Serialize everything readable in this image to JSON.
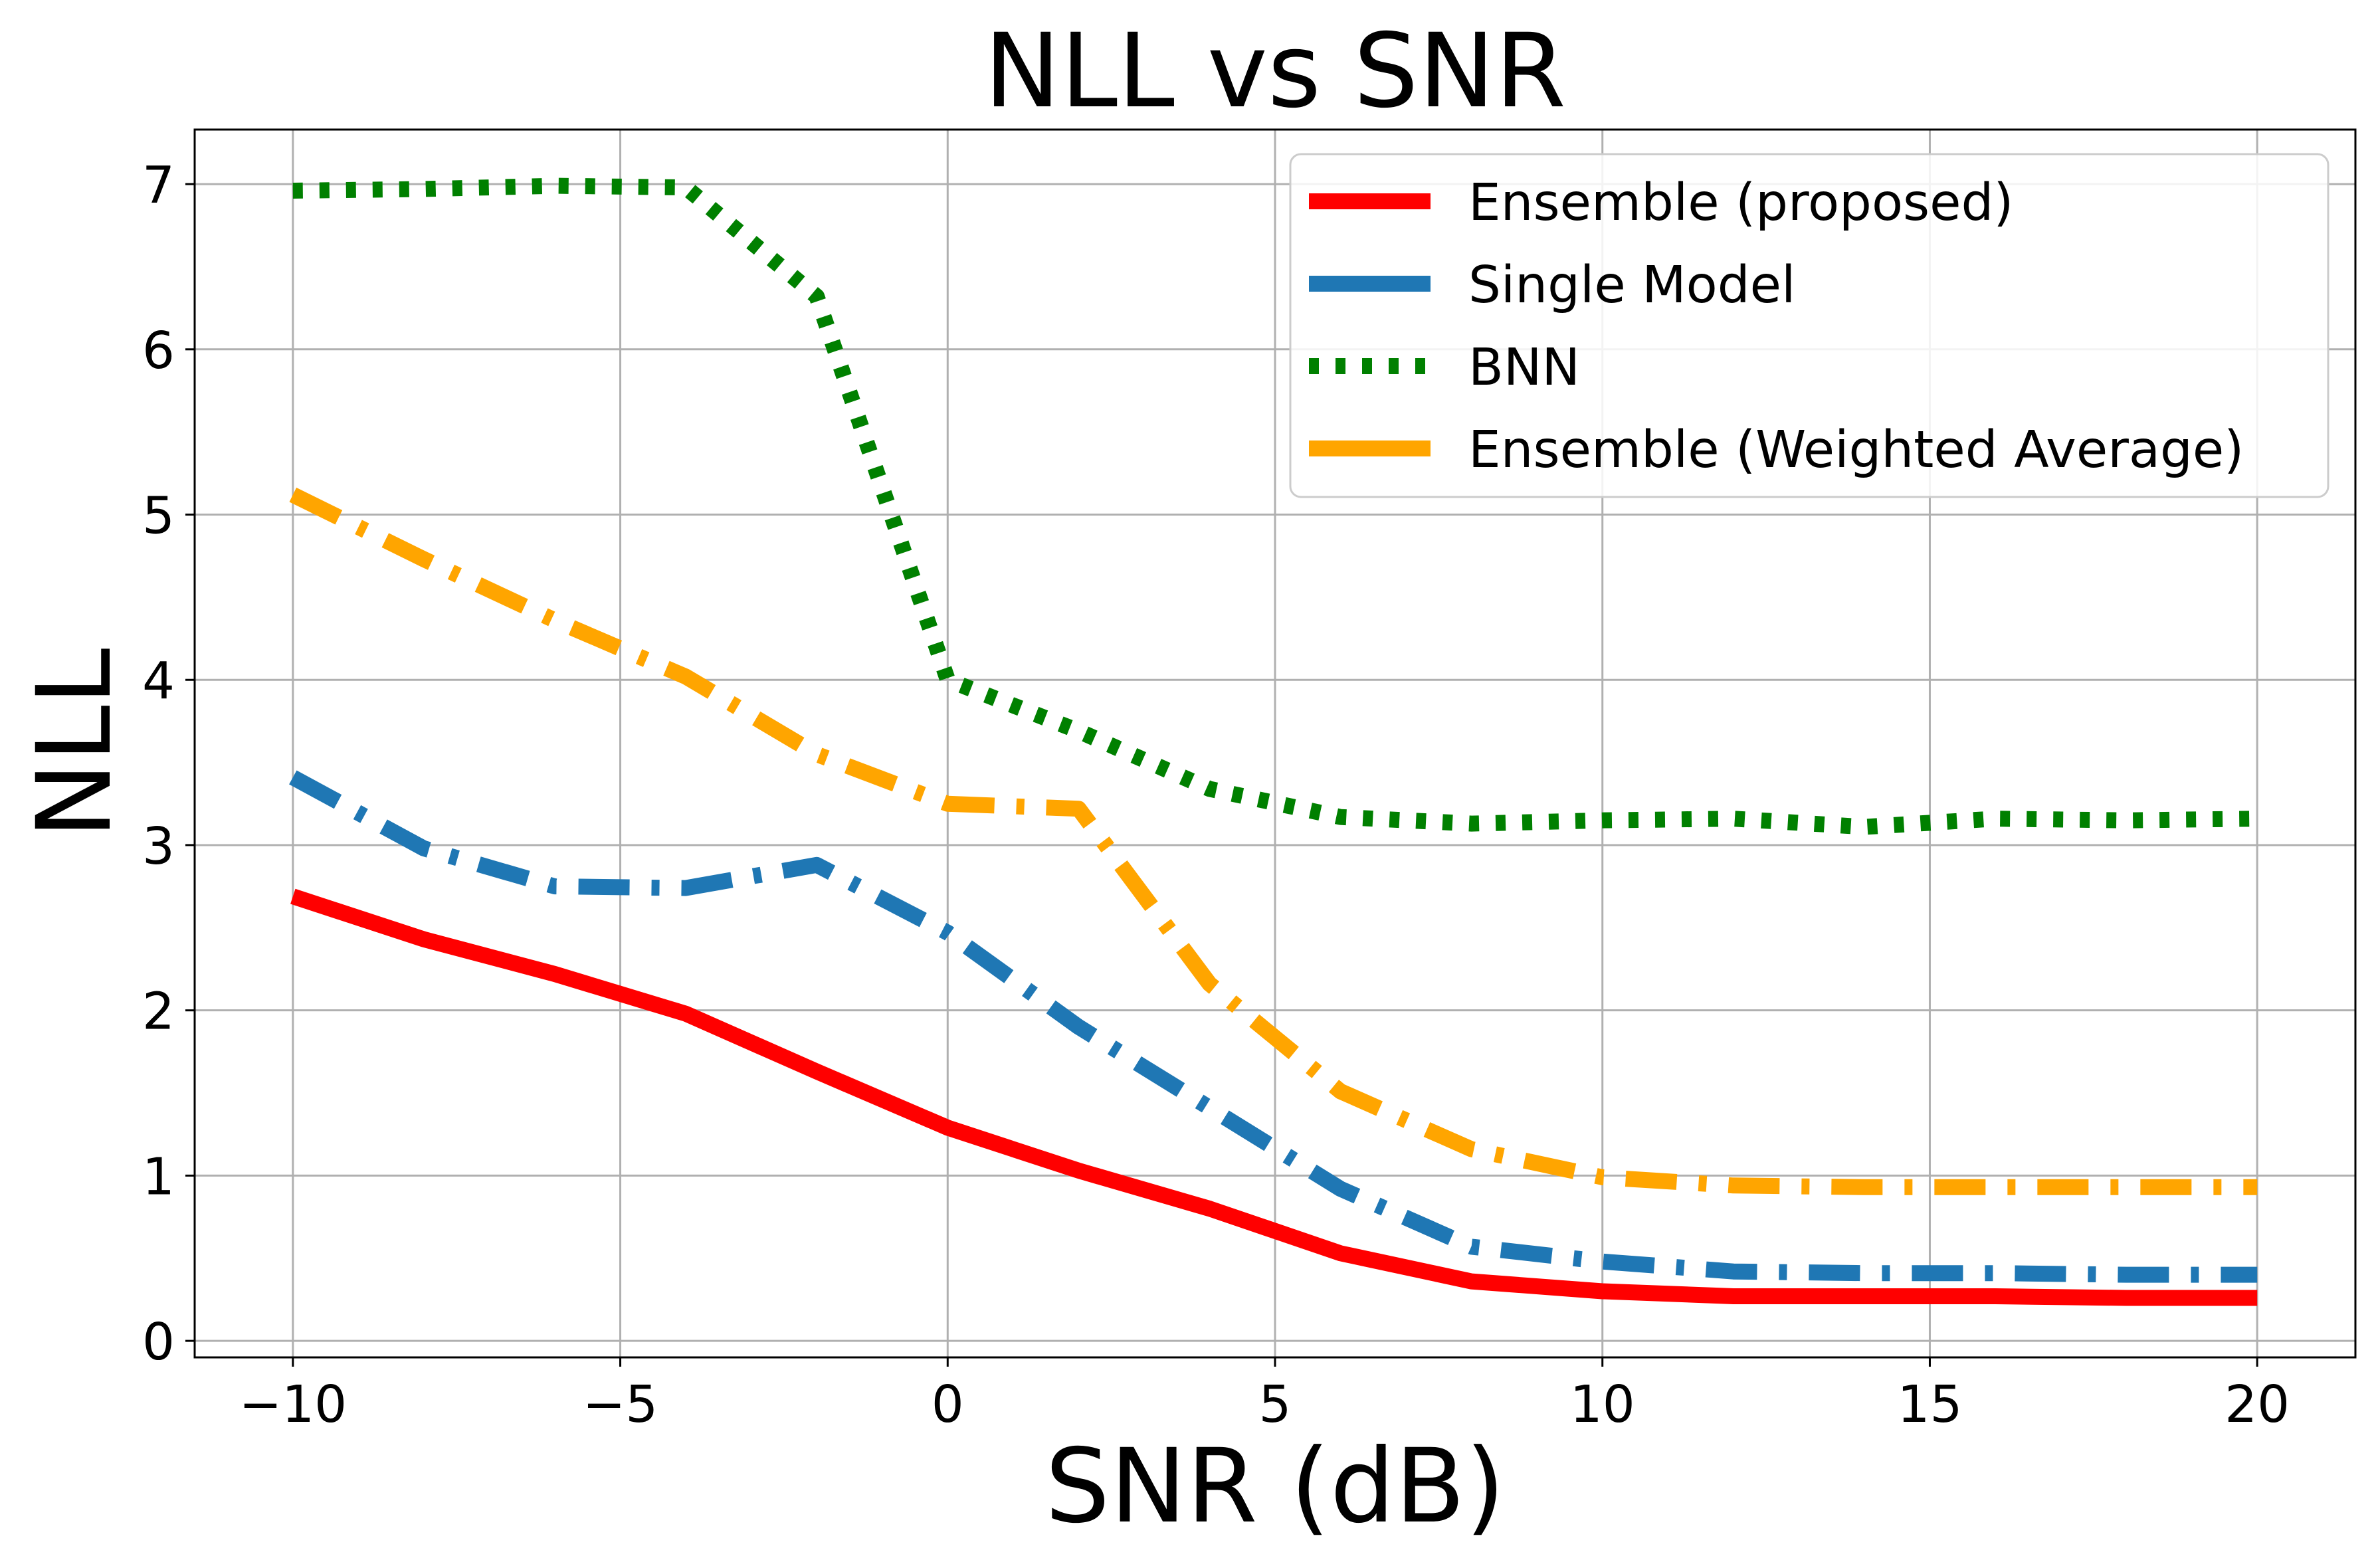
{
  "chart_data": {
    "type": "line",
    "title": "NLL vs SNR",
    "xlabel": "SNR (dB)",
    "ylabel": "NLL",
    "xlim": [
      -11.5,
      21.5
    ],
    "ylim": [
      -0.1,
      7.33
    ],
    "xticks": [
      -10,
      -5,
      0,
      5,
      10,
      15,
      20
    ],
    "xtick_labels": [
      "−10",
      "−5",
      "0",
      "5",
      "10",
      "15",
      "20"
    ],
    "yticks": [
      0,
      1,
      2,
      3,
      4,
      5,
      6,
      7
    ],
    "ytick_labels": [
      "0",
      "1",
      "2",
      "3",
      "4",
      "5",
      "6",
      "7"
    ],
    "grid": true,
    "legend_position": "top-right",
    "x": [
      -10,
      -8,
      -6,
      -4,
      -2,
      0,
      2,
      4,
      6,
      8,
      10,
      12,
      14,
      16,
      18,
      20
    ],
    "series": [
      {
        "name": "Ensemble (proposed)",
        "color": "#ff0000",
        "style": "solid",
        "values": [
          2.69,
          2.43,
          2.22,
          1.98,
          1.63,
          1.29,
          1.03,
          0.8,
          0.53,
          0.36,
          0.3,
          0.27,
          0.27,
          0.27,
          0.26,
          0.26
        ]
      },
      {
        "name": "Single Model",
        "color": "#1f77b4",
        "style": "dashdot",
        "values": [
          3.41,
          2.98,
          2.75,
          2.74,
          2.88,
          2.47,
          1.9,
          1.41,
          0.92,
          0.57,
          0.48,
          0.42,
          0.41,
          0.41,
          0.4,
          0.4
        ]
      },
      {
        "name": "BNN",
        "color": "#008000",
        "style": "dotted",
        "values": [
          6.96,
          6.97,
          6.99,
          6.98,
          6.32,
          4.0,
          3.69,
          3.34,
          3.17,
          3.13,
          3.15,
          3.16,
          3.11,
          3.16,
          3.15,
          3.16
        ]
      },
      {
        "name": "Ensemble (Weighted Average)",
        "color": "#ffa500",
        "style": "dashdot",
        "values": [
          5.12,
          4.73,
          4.36,
          4.02,
          3.55,
          3.25,
          3.22,
          2.16,
          1.51,
          1.16,
          0.99,
          0.94,
          0.93,
          0.93,
          0.93,
          0.93
        ]
      }
    ]
  }
}
